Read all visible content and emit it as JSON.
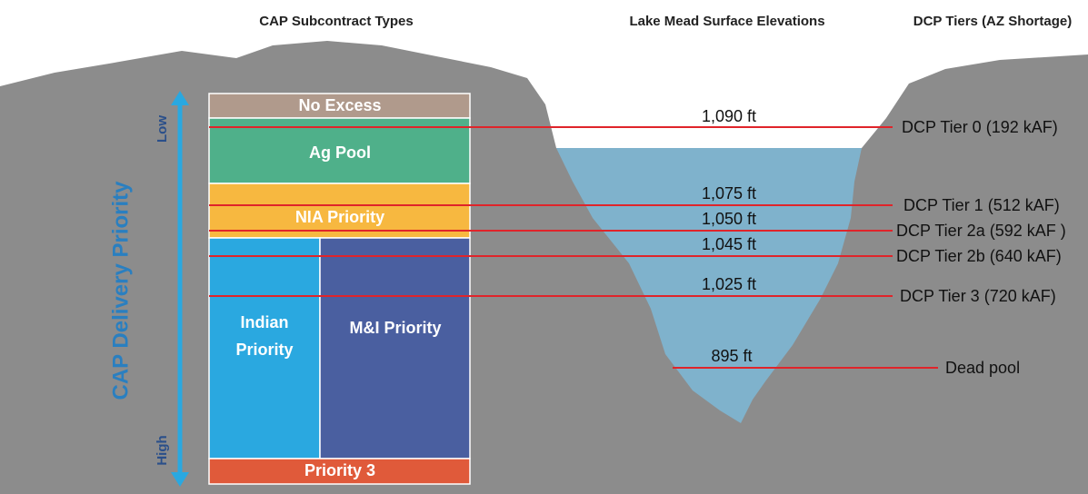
{
  "headers": {
    "subcontract_types": "CAP Subcontract Types",
    "elevations": "Lake Mead Surface Elevations",
    "tiers": "DCP Tiers (AZ Shortage)"
  },
  "priority_axis": {
    "title": "CAP Delivery Priority",
    "low": "Low",
    "high": "High"
  },
  "subcontracts": {
    "no_excess": "No Excess",
    "ag_pool": "Ag Pool",
    "nia": "NIA Priority",
    "indian": "Indian Priority",
    "mi": "M&I Priority",
    "priority3": "Priority 3"
  },
  "levels": [
    {
      "elevation": "1,090 ft",
      "tier": "DCP Tier 0 (192 kAF)"
    },
    {
      "elevation": "1,075 ft",
      "tier": "DCP Tier 1 (512 kAF)"
    },
    {
      "elevation": "1,050 ft",
      "tier": "DCP Tier 2a (592 kAF )"
    },
    {
      "elevation": "1,045 ft",
      "tier": "DCP Tier 2b (640 kAF)"
    },
    {
      "elevation": "1,025 ft",
      "tier": "DCP Tier 3 (720 kAF)"
    },
    {
      "elevation": "895 ft",
      "tier": "Dead pool"
    }
  ]
}
